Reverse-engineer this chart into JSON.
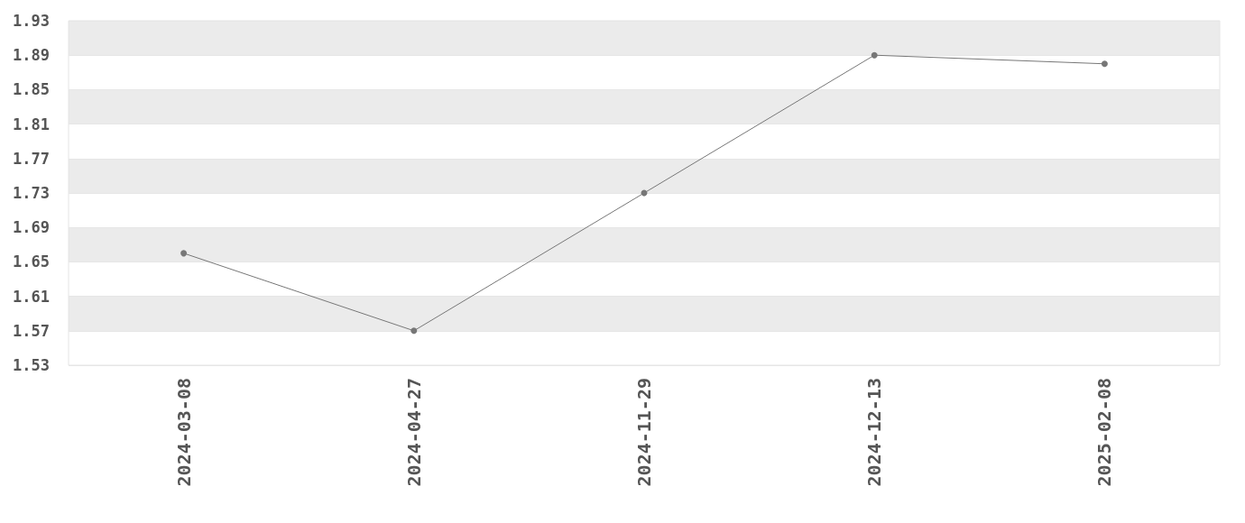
{
  "chart_data": {
    "type": "line",
    "categories": [
      "2024-03-08",
      "2024-04-27",
      "2024-11-29",
      "2024-12-13",
      "2025-02-08"
    ],
    "values": [
      1.66,
      1.57,
      1.73,
      1.89,
      1.88
    ],
    "color": "#777777",
    "ylim": [
      1.53,
      1.93
    ],
    "yticks": [
      1.53,
      1.57,
      1.61,
      1.65,
      1.69,
      1.73,
      1.77,
      1.81,
      1.85,
      1.89,
      1.93
    ],
    "grid": "y",
    "marker": "circle",
    "line_style": "solid"
  }
}
